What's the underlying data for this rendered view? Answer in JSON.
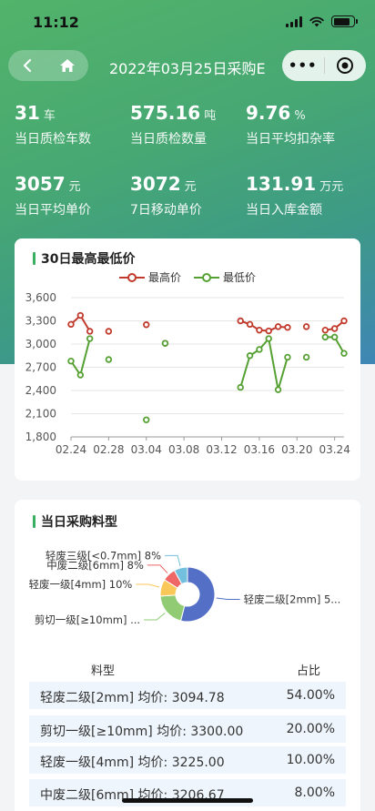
{
  "status_bar": {
    "time": "11:12"
  },
  "nav": {
    "title": "2022年03月25日采购E",
    "more_glyph": "•••"
  },
  "stats": [
    {
      "value": "31",
      "unit": "车",
      "label": "当日质检车数"
    },
    {
      "value": "575.16",
      "unit": "吨",
      "label": "当日质检数量"
    },
    {
      "value": "9.76",
      "unit": "%",
      "label": "当日平均扣杂率"
    },
    {
      "value": "3057",
      "unit": "元",
      "label": "当日平均单价"
    },
    {
      "value": "3072",
      "unit": "元",
      "label": "7日移动单价"
    },
    {
      "value": "131.91",
      "unit": "万元",
      "label": "当日入库金额"
    }
  ],
  "price_card": {
    "title": "30日最高最低价"
  },
  "chart_data": [
    {
      "type": "line",
      "title": "30日最高最低价",
      "ylim": [
        1800,
        3600
      ],
      "yticks": [
        "3,600",
        "3,300",
        "3,000",
        "2,700",
        "2,400",
        "2,100",
        "1,800"
      ],
      "xticks": [
        "02.24",
        "02.28",
        "03.04",
        "03.08",
        "03.12",
        "03.16",
        "03.20",
        "03.24"
      ],
      "x": [
        "02.24",
        "02.25",
        "02.26",
        "02.27",
        "02.28",
        "03.01",
        "03.02",
        "03.03",
        "03.04",
        "03.05",
        "03.06",
        "03.07",
        "03.08",
        "03.09",
        "03.10",
        "03.11",
        "03.12",
        "03.13",
        "03.14",
        "03.15",
        "03.16",
        "03.17",
        "03.18",
        "03.19",
        "03.20",
        "03.21",
        "03.22",
        "03.23",
        "03.24",
        "03.25"
      ],
      "grid": true,
      "legend_position": "top-center",
      "series": [
        {
          "name": "最高价",
          "color": "#c0392b",
          "values": [
            3255,
            3370,
            3165,
            null,
            3165,
            null,
            null,
            null,
            3250,
            null,
            3010,
            null,
            null,
            null,
            null,
            null,
            null,
            null,
            3300,
            3255,
            3180,
            3170,
            3225,
            3215,
            null,
            3225,
            null,
            3180,
            3200,
            3300
          ]
        },
        {
          "name": "最低价",
          "color": "#55a032",
          "values": [
            2780,
            2600,
            3070,
            null,
            2800,
            null,
            null,
            null,
            2020,
            null,
            3010,
            null,
            null,
            null,
            null,
            null,
            null,
            null,
            2440,
            2850,
            2930,
            3070,
            2410,
            2830,
            null,
            2830,
            null,
            3090,
            3090,
            2880
          ]
        }
      ]
    },
    {
      "type": "pie",
      "title": "当日采购料型",
      "categories": [
        "轻废二级[2mm] 5...",
        "剪切一级[≥10mm] ...",
        "轻废一级[4mm] 10%",
        "中废二级[6mm] 8%",
        "轻废三级[<0.7mm] 8%"
      ],
      "values": [
        54,
        20,
        10,
        8,
        8
      ],
      "colors": [
        "#5470c6",
        "#91cc75",
        "#fac858",
        "#ee6666",
        "#73c0de"
      ]
    }
  ],
  "mix_card": {
    "title": "当日采购料型",
    "table_headers": [
      "料型",
      "占比"
    ],
    "rows": [
      {
        "name": "轻废二级[2mm] 均价: 3094.78",
        "pct": "54.00%"
      },
      {
        "name": "剪切一级[≥10mm] 均价: 3300.00",
        "pct": "20.00%"
      },
      {
        "name": "轻废一级[4mm] 均价: 3225.00",
        "pct": "10.00%"
      },
      {
        "name": "中废二级[6mm] 均价: 3206.67",
        "pct": "8.00%"
      }
    ]
  }
}
